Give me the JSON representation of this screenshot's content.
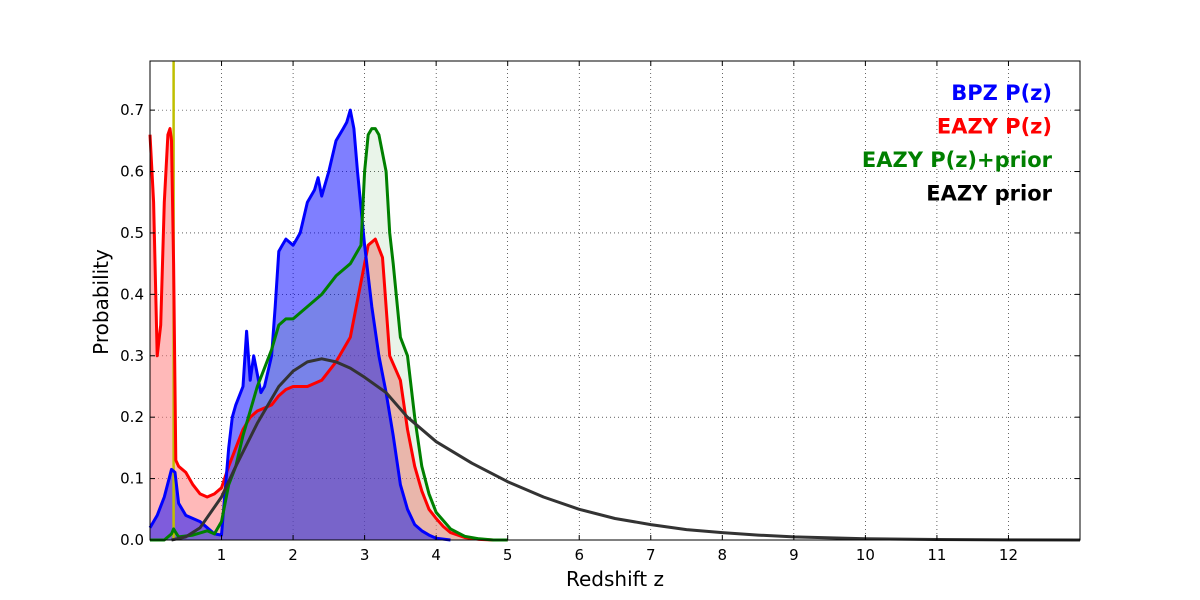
{
  "chart_data": {
    "type": "area",
    "xlabel": "Redshift z",
    "ylabel": "Probability",
    "xlim": [
      0,
      13
    ],
    "ylim": [
      0,
      0.78
    ],
    "grid": true,
    "legend_placement": "top-right",
    "x_ticks": [
      1,
      2,
      3,
      4,
      5,
      6,
      7,
      8,
      9,
      10,
      11,
      12
    ],
    "x_tick_labels": [
      "1",
      "2",
      "3",
      "4",
      "5",
      "6",
      "7",
      "8",
      "9",
      "10",
      "11",
      "12"
    ],
    "y_ticks": [
      0.0,
      0.1,
      0.2,
      0.3,
      0.4,
      0.5,
      0.6,
      0.7
    ],
    "y_tick_labels": [
      "0.0",
      "0.1",
      "0.2",
      "0.3",
      "0.4",
      "0.5",
      "0.6",
      "0.7"
    ],
    "vertical_marker": {
      "x": 0.33,
      "color": "#bfbf00"
    },
    "series": [
      {
        "name": "EAZY P(z)",
        "color": "#ff0000",
        "fill": "#ff8080",
        "x": [
          0.0,
          0.05,
          0.1,
          0.15,
          0.2,
          0.25,
          0.28,
          0.3,
          0.33,
          0.36,
          0.4,
          0.5,
          0.6,
          0.7,
          0.8,
          0.9,
          1.0,
          1.1,
          1.2,
          1.3,
          1.4,
          1.5,
          1.6,
          1.7,
          1.8,
          1.9,
          2.0,
          2.2,
          2.4,
          2.6,
          2.8,
          2.95,
          3.05,
          3.15,
          3.25,
          3.35,
          3.5,
          3.6,
          3.7,
          3.8,
          3.9,
          4.0,
          4.1,
          4.2,
          4.4,
          4.6,
          4.8,
          5.0
        ],
        "y": [
          0.66,
          0.55,
          0.3,
          0.35,
          0.55,
          0.66,
          0.67,
          0.65,
          0.45,
          0.13,
          0.12,
          0.11,
          0.09,
          0.075,
          0.07,
          0.075,
          0.085,
          0.12,
          0.15,
          0.18,
          0.2,
          0.21,
          0.215,
          0.22,
          0.235,
          0.245,
          0.25,
          0.25,
          0.26,
          0.29,
          0.33,
          0.42,
          0.48,
          0.49,
          0.46,
          0.3,
          0.26,
          0.18,
          0.12,
          0.08,
          0.05,
          0.035,
          0.022,
          0.012,
          0.004,
          0.001,
          0.0,
          0.0
        ]
      },
      {
        "name": "BPZ P(z)",
        "color": "#0000ff",
        "fill": "#0000ff",
        "x": [
          0.0,
          0.1,
          0.2,
          0.3,
          0.35,
          0.4,
          0.5,
          0.6,
          0.7,
          0.8,
          0.9,
          1.0,
          1.1,
          1.15,
          1.2,
          1.3,
          1.35,
          1.4,
          1.45,
          1.5,
          1.55,
          1.6,
          1.7,
          1.75,
          1.8,
          1.85,
          1.9,
          2.0,
          2.05,
          2.1,
          2.2,
          2.3,
          2.35,
          2.4,
          2.5,
          2.6,
          2.7,
          2.75,
          2.8,
          2.85,
          2.9,
          3.0,
          3.1,
          3.2,
          3.3,
          3.4,
          3.5,
          3.6,
          3.7,
          3.8,
          3.9,
          4.0,
          4.2
        ],
        "y": [
          0.02,
          0.04,
          0.07,
          0.115,
          0.11,
          0.06,
          0.04,
          0.035,
          0.03,
          0.02,
          0.01,
          0.008,
          0.15,
          0.2,
          0.22,
          0.25,
          0.34,
          0.26,
          0.3,
          0.27,
          0.24,
          0.25,
          0.3,
          0.38,
          0.47,
          0.48,
          0.49,
          0.48,
          0.49,
          0.5,
          0.55,
          0.57,
          0.59,
          0.56,
          0.6,
          0.65,
          0.67,
          0.68,
          0.7,
          0.67,
          0.6,
          0.48,
          0.38,
          0.3,
          0.24,
          0.17,
          0.09,
          0.05,
          0.025,
          0.015,
          0.008,
          0.003,
          0.0
        ]
      },
      {
        "name": "EAZY P(z)+prior",
        "color": "#008000",
        "fill": "#4da64d",
        "x": [
          0.0,
          0.2,
          0.3,
          0.33,
          0.36,
          0.4,
          0.6,
          0.8,
          0.9,
          1.0,
          1.1,
          1.2,
          1.3,
          1.4,
          1.5,
          1.6,
          1.7,
          1.8,
          1.9,
          2.0,
          2.2,
          2.4,
          2.6,
          2.8,
          2.95,
          3.0,
          3.05,
          3.1,
          3.15,
          3.2,
          3.3,
          3.35,
          3.4,
          3.5,
          3.6,
          3.7,
          3.8,
          3.9,
          4.0,
          4.2,
          4.4,
          4.6,
          4.8,
          5.0
        ],
        "y": [
          0.0,
          0.0,
          0.01,
          0.018,
          0.012,
          0.005,
          0.008,
          0.015,
          0.01,
          0.03,
          0.09,
          0.12,
          0.17,
          0.21,
          0.25,
          0.28,
          0.31,
          0.35,
          0.36,
          0.36,
          0.38,
          0.4,
          0.43,
          0.45,
          0.48,
          0.6,
          0.66,
          0.67,
          0.67,
          0.66,
          0.6,
          0.5,
          0.45,
          0.33,
          0.3,
          0.2,
          0.12,
          0.075,
          0.045,
          0.018,
          0.006,
          0.002,
          0.0,
          0.0
        ]
      },
      {
        "name": "EAZY prior",
        "color": "#333333",
        "x": [
          0.3,
          0.5,
          0.7,
          1.0,
          1.2,
          1.5,
          1.8,
          2.0,
          2.2,
          2.4,
          2.6,
          2.8,
          3.0,
          3.3,
          3.6,
          4.0,
          4.5,
          5.0,
          5.5,
          6.0,
          6.5,
          7.0,
          7.5,
          8.0,
          8.5,
          9.0,
          10.0,
          11.0,
          12.0,
          13.0
        ],
        "y": [
          0.0,
          0.005,
          0.02,
          0.07,
          0.12,
          0.19,
          0.25,
          0.275,
          0.29,
          0.295,
          0.29,
          0.28,
          0.265,
          0.24,
          0.2,
          0.16,
          0.125,
          0.095,
          0.07,
          0.05,
          0.035,
          0.025,
          0.017,
          0.012,
          0.008,
          0.005,
          0.002,
          0.0008,
          0.0002,
          0.0
        ]
      }
    ],
    "legend": [
      {
        "label": "BPZ P(z)",
        "color": "#0000ff"
      },
      {
        "label": "EAZY P(z)",
        "color": "#ff0000"
      },
      {
        "label": "EAZY P(z)+prior",
        "color": "#008000"
      },
      {
        "label": "EAZY prior",
        "color": "#000000"
      }
    ]
  }
}
